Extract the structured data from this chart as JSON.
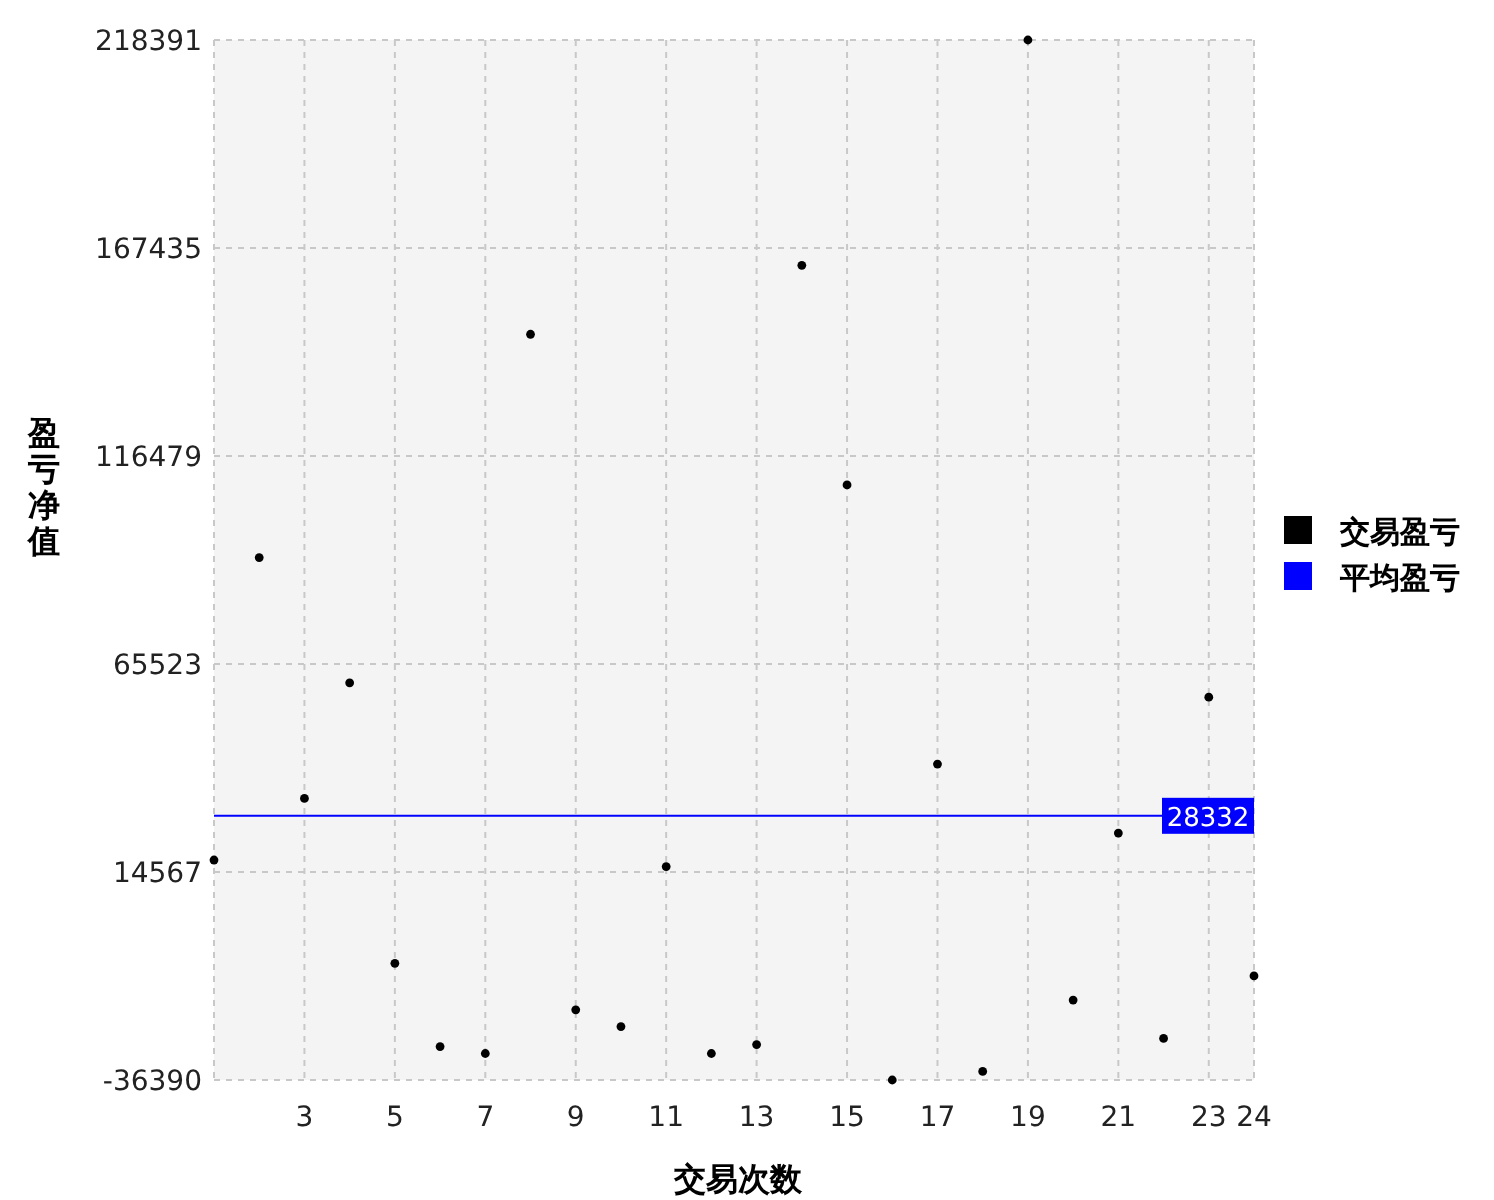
{
  "chart_data": {
    "type": "scatter",
    "xlabel": "交易次数",
    "ylabel": "盈亏净值",
    "x": [
      1,
      2,
      3,
      4,
      5,
      6,
      7,
      8,
      9,
      10,
      11,
      12,
      13,
      14,
      15,
      16,
      17,
      18,
      19,
      20,
      21,
      22,
      23,
      24
    ],
    "series": [
      {
        "name": "交易盈亏",
        "color": "#000000",
        "marker": "circle",
        "values": [
          17500,
          91600,
          32600,
          60900,
          -7800,
          -28200,
          -29900,
          146300,
          -19200,
          -23300,
          15900,
          -29900,
          -27700,
          163200,
          109400,
          -36390,
          41000,
          -34300,
          218391,
          -16800,
          24100,
          -26200,
          57400,
          -10900
        ]
      },
      {
        "type": "line",
        "name": "平均盈亏",
        "color": "#0000ff",
        "marker": "none",
        "x": [
          1,
          24
        ],
        "values": [
          28332,
          28332
        ],
        "value_labels": [
          null,
          "28332"
        ]
      }
    ],
    "xlim": [
      1,
      24
    ],
    "xticks": [
      3,
      5,
      7,
      9,
      11,
      13,
      15,
      17,
      19,
      21,
      23,
      24
    ],
    "ylim": [
      -36390,
      218391
    ],
    "yticks": [
      -36390,
      14567,
      65523,
      116479,
      167435,
      218391
    ],
    "grid": true,
    "legend": "right"
  }
}
